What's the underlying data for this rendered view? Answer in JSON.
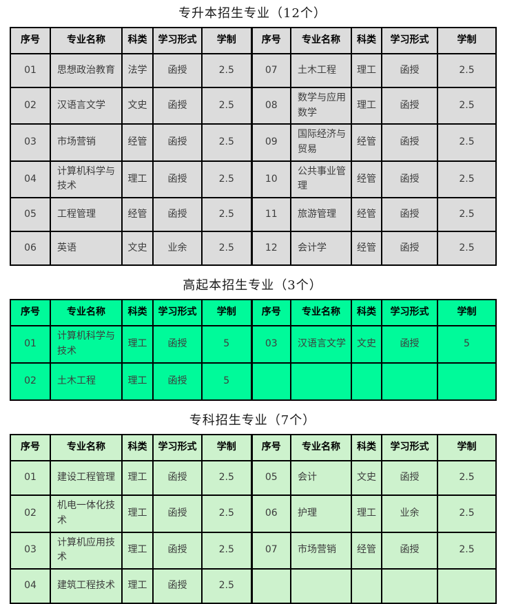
{
  "column_headers": [
    "序号",
    "专业名称",
    "科类",
    "学习形式",
    "学制"
  ],
  "colors": {
    "table1_bg": "#dcdcdc",
    "table2_bg": "#00fa9a",
    "table3_bg": "#cdf2cd",
    "grid_border": "#000000",
    "page_bg": "#ffffff"
  },
  "tables": [
    {
      "title": "专升本招生专业（12个）",
      "bg": "#dcdcdc",
      "rows": [
        {
          "left": [
            "01",
            "思想政治教育",
            "法学",
            "函授",
            "2.5"
          ],
          "right": [
            "07",
            "土木工程",
            "理工",
            "函授",
            "2.5"
          ]
        },
        {
          "left": [
            "02",
            "汉语言文学",
            "文史",
            "函授",
            "2.5"
          ],
          "right": [
            "08",
            "数学与应用数学",
            "理工",
            "函授",
            "2.5"
          ]
        },
        {
          "left": [
            "03",
            "市场营销",
            "经管",
            "函授",
            "2.5"
          ],
          "right": [
            "09",
            "国际经济与贸易",
            "经管",
            "函授",
            "2.5"
          ]
        },
        {
          "left": [
            "04",
            "计算机科学与技术",
            "理工",
            "函授",
            "2.5"
          ],
          "right": [
            "10",
            "公共事业管理",
            "经管",
            "函授",
            "2.5"
          ]
        },
        {
          "left": [
            "05",
            "工程管理",
            "经管",
            "函授",
            "2.5"
          ],
          "right": [
            "11",
            "旅游管理",
            "经管",
            "函授",
            "2.5"
          ]
        },
        {
          "left": [
            "06",
            "英语",
            "文史",
            "业余",
            "2.5"
          ],
          "right": [
            "12",
            "会计学",
            "经管",
            "函授",
            "2.5"
          ]
        }
      ]
    },
    {
      "title": "高起本招生专业（3个）",
      "bg": "#00fa9a",
      "rows": [
        {
          "left": [
            "01",
            "计算机科学与技术",
            "理工",
            "函授",
            "5"
          ],
          "right": [
            "03",
            "汉语言文学",
            "文史",
            "函授",
            "5"
          ]
        },
        {
          "left": [
            "02",
            "土木工程",
            "理工",
            "函授",
            "5"
          ],
          "right": [
            "",
            "",
            "",
            "",
            ""
          ]
        }
      ]
    },
    {
      "title": "专科招生专业（7个）",
      "bg": "#cdf2cd",
      "rows": [
        {
          "left": [
            "01",
            "建设工程管理",
            "理工",
            "函授",
            "2.5"
          ],
          "right": [
            "05",
            "会计",
            "文史",
            "函授",
            "2.5"
          ]
        },
        {
          "left": [
            "02",
            "机电一体化技术",
            "理工",
            "函授",
            "2.5"
          ],
          "right": [
            "06",
            "护理",
            "理工",
            "业余",
            "2.5"
          ]
        },
        {
          "left": [
            "03",
            "计算机应用技术",
            "理工",
            "函授",
            "2.5"
          ],
          "right": [
            "07",
            "市场营销",
            "经管",
            "函授",
            "2.5"
          ]
        },
        {
          "left": [
            "04",
            "建筑工程技术",
            "理工",
            "函授",
            "2.5"
          ],
          "right": [
            "",
            "",
            "",
            "",
            ""
          ]
        }
      ]
    }
  ]
}
